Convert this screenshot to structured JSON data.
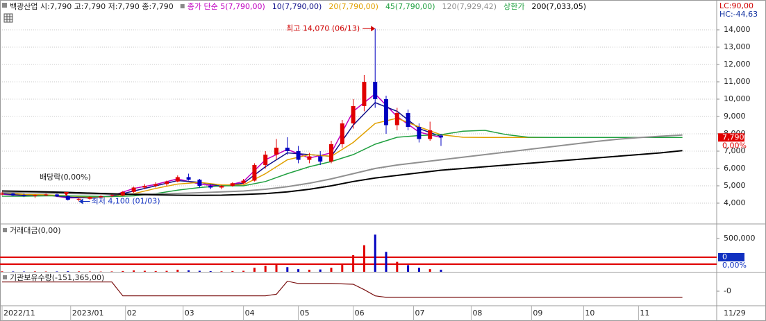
{
  "header": {
    "title": "백광산업 시:7,790 고:7,790 저:7,790 종:7,790",
    "lc": "LC:90,00",
    "hc": "HC:-44,63"
  },
  "chart_data": [
    {
      "type": "candlestick",
      "xlim": [
        0,
        260
      ],
      "xticks": [
        {
          "value": 0,
          "label": "2022/11"
        },
        {
          "value": 25,
          "label": "2023/01"
        },
        {
          "value": 45,
          "label": "02"
        },
        {
          "value": 66,
          "label": "03"
        },
        {
          "value": 88,
          "label": "04"
        },
        {
          "value": 108,
          "label": "05"
        },
        {
          "value": 128,
          "label": "06"
        },
        {
          "value": 150,
          "label": "07"
        },
        {
          "value": 171,
          "label": "08"
        },
        {
          "value": 193,
          "label": "09"
        },
        {
          "value": 212,
          "label": "10"
        },
        {
          "value": 232,
          "label": "11"
        }
      ],
      "end_date": "11/29",
      "ylim": [
        2840,
        14840
      ],
      "yticks": [
        {
          "value": 4000,
          "label": "4,000"
        },
        {
          "value": 5000,
          "label": "5,000"
        },
        {
          "value": 6000,
          "label": "6,000"
        },
        {
          "value": 7000,
          "label": "7,000"
        },
        {
          "value": 8000,
          "label": "8,000"
        },
        {
          "value": 9000,
          "label": "9,000"
        },
        {
          "value": 10000,
          "label": "10,000"
        },
        {
          "value": 11000,
          "label": "11,000"
        },
        {
          "value": 12000,
          "label": "12,000"
        },
        {
          "value": 13000,
          "label": "13,000"
        },
        {
          "value": 14000,
          "label": "14,000"
        }
      ],
      "grid": true,
      "up_color": "#e00000",
      "down_color": "#0000c0",
      "candles": {
        "x": [
          0,
          4,
          8,
          12,
          16,
          20,
          24,
          28,
          32,
          36,
          40,
          44,
          48,
          52,
          56,
          60,
          64,
          68,
          72,
          76,
          80,
          84,
          88,
          92,
          96,
          100,
          104,
          108,
          112,
          116,
          120,
          124,
          128,
          132,
          136,
          140,
          144,
          148,
          152,
          156,
          160
        ],
        "open": [
          4500,
          4550,
          4450,
          4400,
          4450,
          4500,
          4400,
          4200,
          4250,
          4350,
          4400,
          4450,
          4650,
          4900,
          5000,
          5100,
          5250,
          5500,
          5350,
          5000,
          4900,
          5000,
          5150,
          5300,
          6200,
          6800,
          7200,
          7000,
          6500,
          6700,
          6400,
          7400,
          8600,
          9600,
          11000,
          10000,
          8500,
          9200,
          8400,
          7700,
          7900
        ],
        "high": [
          4650,
          4600,
          4550,
          4500,
          4550,
          4550,
          4450,
          4300,
          4400,
          4450,
          4500,
          4700,
          4950,
          5100,
          5200,
          5300,
          5600,
          5700,
          5400,
          5100,
          5050,
          5200,
          5400,
          6300,
          7000,
          7700,
          7800,
          7300,
          6900,
          7000,
          7600,
          8800,
          10000,
          11400,
          14070,
          10200,
          9500,
          9400,
          8600,
          8700,
          8000
        ],
        "low": [
          4450,
          4400,
          4350,
          4300,
          4400,
          4350,
          4150,
          4100,
          4200,
          4300,
          4350,
          4400,
          4600,
          4800,
          4900,
          5000,
          5200,
          5300,
          4900,
          4800,
          4800,
          4950,
          5100,
          5250,
          6000,
          6500,
          6800,
          6300,
          6300,
          6200,
          6300,
          7200,
          8300,
          9300,
          9500,
          8000,
          8200,
          8200,
          7500,
          7600,
          7300
        ],
        "close": [
          4550,
          4450,
          4400,
          4450,
          4500,
          4400,
          4200,
          4250,
          4350,
          4400,
          4450,
          4650,
          4900,
          5000,
          5100,
          5250,
          5500,
          5350,
          5000,
          4900,
          5000,
          5150,
          5300,
          6200,
          6800,
          7200,
          7000,
          6500,
          6700,
          6400,
          7400,
          8600,
          9600,
          11000,
          10000,
          8500,
          9200,
          8400,
          7700,
          8200,
          7790
        ]
      },
      "x": [
        0,
        8,
        16,
        24,
        32,
        40,
        48,
        56,
        64,
        72,
        80,
        88,
        96,
        104,
        112,
        120,
        128,
        136,
        144,
        152,
        160,
        168,
        176,
        184,
        192,
        200,
        208,
        216,
        224,
        232,
        240,
        248
      ],
      "series": [
        {
          "name": "종가 단순 5(7,790,00)",
          "color": "#c000c0",
          "values": [
            4520,
            4430,
            4480,
            4300,
            4320,
            4420,
            4850,
            5080,
            5400,
            5100,
            4950,
            5250,
            6500,
            7100,
            6600,
            6900,
            9300,
            10300,
            9000,
            8100,
            7790,
            null,
            null,
            null,
            null,
            null,
            null,
            null,
            null,
            null,
            null,
            null
          ]
        },
        {
          "name": "10(7,790,00)",
          "color": "#10108a",
          "values": [
            4550,
            4450,
            4470,
            4350,
            4300,
            4400,
            4700,
            5000,
            5300,
            5200,
            4980,
            5150,
            6100,
            6900,
            6800,
            6700,
            8500,
            9800,
            9300,
            8300,
            7850,
            null,
            null,
            null,
            null,
            null,
            null,
            null,
            null,
            null,
            null,
            null
          ]
        },
        {
          "name": "20(7,790,00)",
          "color": "#e0a000",
          "values": [
            4600,
            4500,
            4480,
            4420,
            4350,
            4380,
            4550,
            4850,
            5100,
            5200,
            5050,
            5050,
            5700,
            6500,
            6800,
            6700,
            7500,
            8600,
            8900,
            8400,
            7950,
            7800,
            7790,
            7790,
            7790,
            7790,
            7790,
            7790,
            7790,
            7790,
            7790,
            7790
          ]
        },
        {
          "name": "45(7,790,00)",
          "color": "#20a040",
          "values": [
            4400,
            4400,
            4420,
            4420,
            4400,
            4380,
            4420,
            4550,
            4750,
            4900,
            5000,
            5000,
            5250,
            5700,
            6100,
            6400,
            6800,
            7400,
            7800,
            7900,
            7950,
            8150,
            8200,
            7950,
            7800,
            7790,
            7790,
            7790,
            7790,
            7790,
            7790,
            7790
          ]
        },
        {
          "name": "120(7,929,42)",
          "color": "#909090",
          "values": [
            4600,
            4600,
            4580,
            4560,
            4540,
            4520,
            4520,
            4530,
            4560,
            4600,
            4650,
            4700,
            4800,
            4950,
            5150,
            5400,
            5700,
            6000,
            6200,
            6350,
            6500,
            6650,
            6800,
            6950,
            7100,
            7250,
            7400,
            7550,
            7680,
            7780,
            7860,
            7929
          ]
        },
        {
          "name": "200(7,033,05)",
          "color": "#000000",
          "values": [
            4700,
            4680,
            4650,
            4620,
            4580,
            4540,
            4500,
            4480,
            4460,
            4450,
            4460,
            4500,
            4550,
            4650,
            4800,
            5000,
            5250,
            5450,
            5600,
            5750,
            5900,
            6000,
            6100,
            6200,
            6300,
            6400,
            6500,
            6600,
            6700,
            6800,
            6900,
            7033
          ]
        }
      ],
      "limit_label": "상한가",
      "limit_color": "#20a040",
      "high": {
        "label": "최고 14,070 (06/13)",
        "value": 14070
      },
      "low": {
        "label": "최저 4,100 (01/03)",
        "value": 4100
      },
      "dividend": "배당락(0,00%)",
      "last": {
        "value": 7790,
        "label": "7,790"
      },
      "change": "0,00%"
    },
    {
      "type": "bar",
      "title": "거래대금(0,00)",
      "ylim": [
        0,
        700000
      ],
      "yticks": [
        {
          "value": 500000,
          "label": "500,000"
        }
      ],
      "values": [
        8000,
        6000,
        5000,
        7000,
        5000,
        6000,
        9000,
        7000,
        5000,
        4000,
        6000,
        12000,
        20000,
        15000,
        12000,
        14000,
        30000,
        22000,
        15000,
        10000,
        8000,
        12000,
        15000,
        60000,
        90000,
        110000,
        70000,
        40000,
        30000,
        35000,
        60000,
        120000,
        250000,
        400000,
        560000,
        300000,
        150000,
        100000,
        60000,
        40000,
        30000
      ],
      "last": "0",
      "change": "0,00%"
    },
    {
      "type": "line",
      "title": "기관보유수량(-151,365,00)",
      "color": "#7a1010",
      "ylim": [
        -90000,
        112500
      ],
      "yticks": [
        {
          "value": 0,
          "label": "-0"
        }
      ],
      "x": [
        0,
        40,
        44,
        96,
        100,
        104,
        108,
        120,
        128,
        132,
        136,
        140,
        160,
        248
      ],
      "values": [
        60000,
        60000,
        -30000,
        -30000,
        -20000,
        65000,
        50000,
        50000,
        45000,
        10000,
        -30000,
        -40000,
        -40000,
        -40000
      ]
    }
  ]
}
